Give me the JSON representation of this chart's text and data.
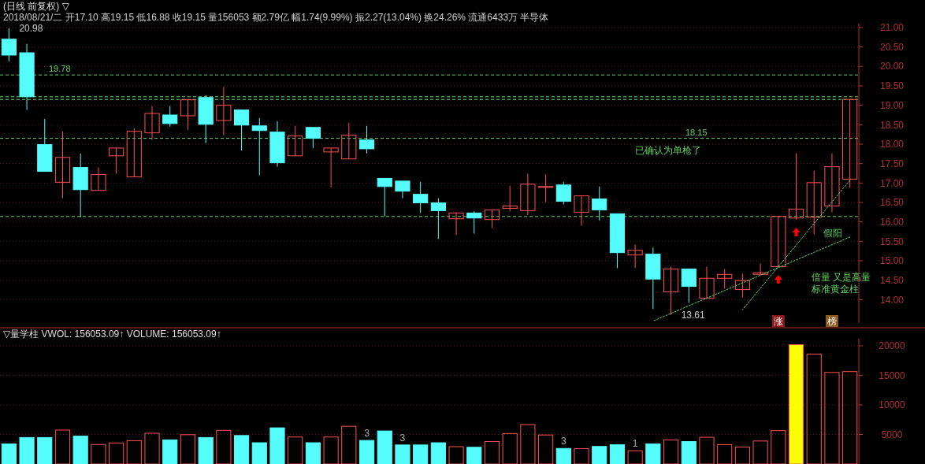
{
  "chart_data": [
    {
      "type": "candlestick",
      "title": "(日线 前复权) ▽",
      "subtitle": "2018/08/21/二 开17.10 高19.15 低16.88 收19.15 量156053 额2.79亿 幅1.74(9.99%) 振2.27(13.04%) 换24.26% 流通6433万 半导体",
      "categories": [
        null,
        null,
        null,
        null,
        null,
        null,
        null,
        null,
        null,
        null,
        null,
        null,
        null,
        null,
        null,
        null,
        null,
        null,
        null,
        null,
        null,
        null,
        null,
        null,
        null,
        null,
        null,
        null,
        null,
        null,
        null,
        null,
        null,
        null,
        null,
        null,
        null,
        null,
        null,
        null,
        null,
        null,
        null,
        null,
        null,
        null,
        null,
        null
      ],
      "ohlc": [
        [
          20.7,
          20.98,
          20.13,
          20.29
        ],
        [
          20.35,
          20.58,
          18.88,
          19.22
        ],
        [
          17.99,
          18.65,
          17.3,
          17.3
        ],
        [
          17.02,
          18.33,
          16.61,
          17.66
        ],
        [
          17.4,
          17.76,
          16.12,
          16.83
        ],
        [
          16.81,
          17.4,
          16.81,
          17.22
        ],
        [
          17.7,
          17.9,
          17.24,
          17.9
        ],
        [
          17.16,
          18.41,
          17.16,
          18.33
        ],
        [
          18.29,
          18.98,
          18.11,
          18.79
        ],
        [
          18.75,
          18.98,
          18.45,
          18.53
        ],
        [
          18.73,
          19.14,
          18.37,
          19.14
        ],
        [
          19.2,
          19.26,
          18.03,
          18.51
        ],
        [
          18.61,
          19.47,
          18.23,
          19.0
        ],
        [
          18.88,
          18.88,
          17.84,
          18.49
        ],
        [
          18.47,
          18.67,
          17.2,
          18.35
        ],
        [
          18.31,
          18.59,
          17.42,
          17.52
        ],
        [
          17.7,
          18.47,
          17.7,
          18.21
        ],
        [
          18.43,
          18.43,
          17.9,
          18.15
        ],
        [
          17.8,
          17.9,
          16.89,
          17.9
        ],
        [
          17.62,
          18.55,
          17.62,
          18.23
        ],
        [
          18.11,
          18.47,
          17.76,
          17.88
        ],
        [
          17.12,
          17.12,
          16.14,
          16.91
        ],
        [
          17.05,
          17.05,
          16.61,
          16.79
        ],
        [
          16.71,
          17.03,
          16.23,
          16.49
        ],
        [
          16.49,
          16.61,
          15.56,
          16.29
        ],
        [
          16.08,
          16.25,
          15.66,
          16.23
        ],
        [
          16.23,
          16.27,
          15.7,
          16.1
        ],
        [
          16.06,
          16.31,
          15.84,
          16.31
        ],
        [
          16.35,
          16.93,
          16.27,
          16.41
        ],
        [
          16.29,
          17.24,
          16.17,
          16.97
        ],
        [
          16.89,
          17.22,
          16.51,
          16.91
        ],
        [
          16.95,
          17.03,
          16.45,
          16.53
        ],
        [
          16.25,
          16.67,
          15.9,
          16.67
        ],
        [
          16.59,
          16.91,
          16.04,
          16.31
        ],
        [
          16.21,
          16.21,
          14.81,
          15.21
        ],
        [
          15.15,
          15.42,
          14.81,
          15.27
        ],
        [
          15.17,
          15.34,
          13.76,
          14.53
        ],
        [
          14.2,
          14.85,
          13.61,
          14.79
        ],
        [
          14.79,
          14.79,
          13.92,
          14.34
        ],
        [
          14.04,
          14.85,
          14.04,
          14.55
        ],
        [
          14.55,
          14.79,
          14.28,
          14.65
        ],
        [
          14.26,
          14.67,
          14.06,
          14.49
        ],
        [
          14.65,
          14.93,
          14.65,
          14.69
        ],
        [
          14.85,
          16.14,
          14.85,
          16.14
        ],
        [
          16.1,
          17.76,
          16.06,
          16.33
        ],
        [
          16.12,
          17.32,
          15.68,
          17.01
        ],
        [
          16.41,
          17.76,
          16.25,
          17.42
        ],
        [
          17.1,
          19.15,
          16.88,
          19.15
        ]
      ],
      "colors": [
        "#54fcfc",
        "#54fcfc",
        "#54fcfc",
        "#ff5050",
        "#54fcfc",
        "#ff5050",
        "#ff5050",
        "#ff5050",
        "#ff5050",
        "#54fcfc",
        "#ff5050",
        "#54fcfc",
        "#ff5050",
        "#54fcfc",
        "#54fcfc",
        "#54fcfc",
        "#ff5050",
        "#54fcfc",
        "#ff5050",
        "#ff5050",
        "#54fcfc",
        "#54fcfc",
        "#54fcfc",
        "#54fcfc",
        "#54fcfc",
        "#ff5050",
        "#54fcfc",
        "#ff5050",
        "#ff5050",
        "#ff5050",
        "#ff5050",
        "#54fcfc",
        "#ff5050",
        "#54fcfc",
        "#54fcfc",
        "#ff5050",
        "#54fcfc",
        "#ff5050",
        "#54fcfc",
        "#ff5050",
        "#ff5050",
        "#ff5050",
        "#ff5050",
        "#ff5050",
        "#ff5050",
        "#ff5050",
        "#ff5050",
        "#ff5050"
      ],
      "series": [
        {
          "type": "line",
          "color": "#5fd35f",
          "line_style": "dotted",
          "values": [
            null,
            null,
            null,
            null,
            null,
            null,
            null,
            null,
            null,
            null,
            null,
            null,
            null,
            null,
            null,
            null,
            null,
            null,
            null,
            null,
            null,
            null,
            null,
            null,
            null,
            null,
            null,
            null,
            null,
            null,
            null,
            null,
            null,
            null,
            null,
            null,
            13.45,
            null,
            null,
            null,
            null,
            null,
            null,
            null,
            null,
            null,
            null,
            15.61
          ]
        },
        {
          "type": "line",
          "color": "#5fd35f",
          "line_style": "dotted",
          "values": [
            null,
            null,
            null,
            null,
            null,
            null,
            null,
            null,
            null,
            null,
            null,
            null,
            null,
            null,
            null,
            null,
            null,
            null,
            null,
            null,
            null,
            null,
            null,
            null,
            null,
            null,
            null,
            null,
            null,
            null,
            null,
            null,
            null,
            null,
            null,
            null,
            null,
            null,
            null,
            null,
            null,
            13.74,
            null,
            null,
            null,
            null,
            null,
            17.07
          ]
        }
      ],
      "ylim": [
        13.4,
        21.1
      ],
      "yticks": [
        {
          "value": 14,
          "label": "14.00"
        },
        {
          "value": 14.5,
          "label": "14.50"
        },
        {
          "value": 15,
          "label": "15.00"
        },
        {
          "value": 15.5,
          "label": "15.50"
        },
        {
          "value": 16,
          "label": "16.00"
        },
        {
          "value": 16.5,
          "label": "16.50"
        },
        {
          "value": 17,
          "label": "17.00"
        },
        {
          "value": 17.5,
          "label": "17.50"
        },
        {
          "value": 18,
          "label": "18.00"
        },
        {
          "value": 18.5,
          "label": "18.50"
        },
        {
          "value": 19,
          "label": "19.00"
        },
        {
          "value": 19.5,
          "label": "19.50"
        },
        {
          "value": 20,
          "label": "20.00"
        },
        {
          "value": 20.5,
          "label": "20.50"
        },
        {
          "value": 21,
          "label": "21.00"
        }
      ],
      "grid": "y",
      "ref_lines": [
        {
          "axis": "y",
          "value": 19.78,
          "label": "19.78",
          "color": "#5fd35f",
          "line_style": "dashed"
        },
        {
          "axis": "y",
          "value": 19.22,
          "label": null,
          "color": "#5fd35f",
          "line_style": "dashed"
        },
        {
          "axis": "y",
          "value": 19.15,
          "label": null,
          "color": "#5fd35f",
          "line_style": "dashed"
        },
        {
          "axis": "y",
          "value": 18.15,
          "label": "18.15",
          "color": "#5fd35f",
          "line_style": "dashed"
        },
        {
          "axis": "y",
          "value": 16.14,
          "label": null,
          "color": "#5fd35f",
          "line_style": "dashed"
        }
      ],
      "annotations": [
        "20.98",
        "13.61",
        "已确认为单枪了",
        "假阳",
        "倍量 又是高量",
        "标准黄金柱",
        "涨",
        "榜"
      ]
    },
    {
      "type": "bar",
      "title": "▽量学柱 VWOL: 156053.09↑ VOLUME: 156053.09↑",
      "categories": [
        null,
        null,
        null,
        null,
        null,
        null,
        null,
        null,
        null,
        null,
        null,
        null,
        null,
        null,
        null,
        null,
        null,
        null,
        null,
        null,
        null,
        null,
        null,
        null,
        null,
        null,
        null,
        null,
        null,
        null,
        null,
        null,
        null,
        null,
        null,
        null,
        null,
        null,
        null,
        null,
        null,
        null,
        null,
        null,
        null,
        null,
        null,
        null
      ],
      "values": [
        3400,
        4480,
        4480,
        5740,
        4720,
        3300,
        3560,
        3940,
        5200,
        4090,
        4960,
        4480,
        5690,
        4820,
        3600,
        6120,
        4570,
        3600,
        4570,
        6380,
        3990,
        5590,
        3220,
        3220,
        3600,
        2930,
        2830,
        3800,
        5150,
        6670,
        4910,
        2630,
        2590,
        2970,
        3260,
        2250,
        3410,
        4090,
        3800,
        4520,
        3260,
        2880,
        3890,
        5640,
        20200,
        18600,
        15500,
        15640
      ],
      "colors": [
        "#54fcfc",
        "#54fcfc",
        "#54fcfc",
        "#ff5050",
        "#54fcfc",
        "#ff5050",
        "#ff5050",
        "#ff5050",
        "#ff5050",
        "#54fcfc",
        "#ff5050",
        "#54fcfc",
        "#ff5050",
        "#54fcfc",
        "#54fcfc",
        "#54fcfc",
        "#ff5050",
        "#54fcfc",
        "#ff5050",
        "#ff5050",
        "#54fcfc",
        "#54fcfc",
        "#54fcfc",
        "#54fcfc",
        "#54fcfc",
        "#ff5050",
        "#54fcfc",
        "#ff5050",
        "#ff5050",
        "#ff5050",
        "#ff5050",
        "#54fcfc",
        "#ff5050",
        "#54fcfc",
        "#54fcfc",
        "#ff5050",
        "#54fcfc",
        "#ff5050",
        "#54fcfc",
        "#ff5050",
        "#ff5050",
        "#ff5050",
        "#ff5050",
        "#ff5050",
        "#ffff00",
        "#ff5050",
        "#ff5050",
        "#ff5050"
      ],
      "annotations": [
        "3",
        "3",
        "3",
        "1"
      ],
      "ylim": [
        0,
        21200
      ],
      "yticks": [
        5000,
        10000,
        15000,
        20000
      ],
      "grid": "y"
    }
  ]
}
